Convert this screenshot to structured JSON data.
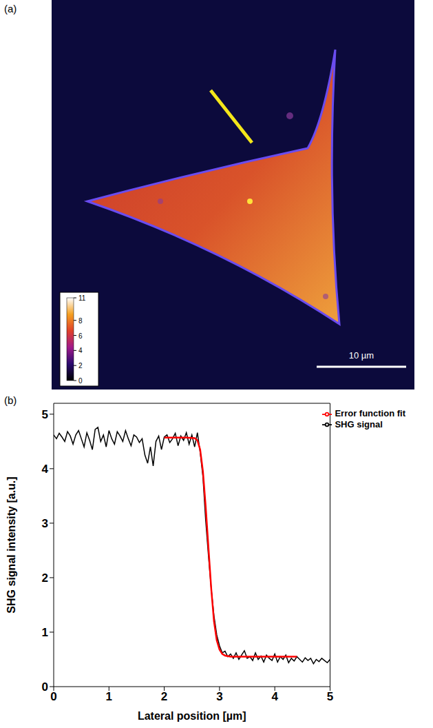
{
  "panel_labels": [
    "(a)",
    "(b)"
  ],
  "image": {
    "colorbar": {
      "range": [
        0,
        11
      ],
      "ticks": [
        0,
        2,
        4,
        6,
        8,
        11
      ]
    },
    "scale_bar": "10 µm"
  },
  "chart_data": {
    "type": "line",
    "x_label": "Lateral position [µm]",
    "y_label": "SHG signal intensity [a.u.]",
    "xlim": [
      0,
      5
    ],
    "ylim": [
      0,
      5.2
    ],
    "xticks": [
      0,
      1,
      2,
      3,
      4,
      5
    ],
    "yticks": [
      0,
      1,
      2,
      3,
      4,
      5
    ],
    "legend": "top-right",
    "series": [
      {
        "name": "SHG signal",
        "color": "#000000",
        "x": [
          0,
          0.05,
          0.1,
          0.15,
          0.2,
          0.25,
          0.3,
          0.35,
          0.4,
          0.45,
          0.5,
          0.55,
          0.6,
          0.65,
          0.7,
          0.75,
          0.8,
          0.85,
          0.9,
          0.95,
          1,
          1.05,
          1.1,
          1.15,
          1.2,
          1.25,
          1.3,
          1.35,
          1.4,
          1.45,
          1.5,
          1.55,
          1.6,
          1.65,
          1.7,
          1.75,
          1.8,
          1.85,
          1.9,
          1.95,
          2,
          2.05,
          2.1,
          2.15,
          2.2,
          2.25,
          2.3,
          2.35,
          2.4,
          2.45,
          2.5,
          2.55,
          2.6,
          2.65,
          2.7,
          2.75,
          2.8,
          2.85,
          2.9,
          2.95,
          3,
          3.05,
          3.1,
          3.15,
          3.2,
          3.25,
          3.3,
          3.35,
          3.4,
          3.45,
          3.5,
          3.55,
          3.6,
          3.65,
          3.7,
          3.75,
          3.8,
          3.85,
          3.9,
          3.95,
          4,
          4.05,
          4.1,
          4.15,
          4.2,
          4.25,
          4.3,
          4.35,
          4.4,
          4.45,
          4.5,
          4.55,
          4.6,
          4.65,
          4.7,
          4.75,
          4.8,
          4.85,
          4.9,
          4.95,
          5
        ],
        "values": [
          4.62,
          4.55,
          4.65,
          4.58,
          4.5,
          4.68,
          4.6,
          4.45,
          4.62,
          4.7,
          4.55,
          4.4,
          4.66,
          4.52,
          4.35,
          4.72,
          4.76,
          4.5,
          4.62,
          4.4,
          4.7,
          4.55,
          4.45,
          4.68,
          4.6,
          4.5,
          4.7,
          4.55,
          4.42,
          4.62,
          4.58,
          4.48,
          4.55,
          4.25,
          4.1,
          4.4,
          4.05,
          4.5,
          4.6,
          4.35,
          4.58,
          4.62,
          4.48,
          4.55,
          4.65,
          4.42,
          4.6,
          4.52,
          4.66,
          4.45,
          4.62,
          4.4,
          4.66,
          4.3,
          3.85,
          3.05,
          2.4,
          1.8,
          1.3,
          0.95,
          0.75,
          0.62,
          0.65,
          0.55,
          0.6,
          0.52,
          0.62,
          0.5,
          0.58,
          0.66,
          0.52,
          0.55,
          0.48,
          0.62,
          0.5,
          0.56,
          0.45,
          0.58,
          0.52,
          0.48,
          0.6,
          0.45,
          0.55,
          0.5,
          0.58,
          0.44,
          0.52,
          0.47,
          0.55,
          0.5,
          0.45,
          0.53,
          0.48,
          0.52,
          0.42,
          0.5,
          0.46,
          0.52,
          0.48,
          0.44,
          0.5
        ]
      },
      {
        "name": "Error function fit",
        "color": "#ff0000",
        "x": [
          2,
          2.2,
          2.4,
          2.55,
          2.6,
          2.65,
          2.7,
          2.75,
          2.8,
          2.85,
          2.9,
          2.95,
          3,
          3.05,
          3.1,
          3.2,
          3.5,
          4,
          4.4
        ],
        "values": [
          4.57,
          4.57,
          4.57,
          4.56,
          4.52,
          4.35,
          3.95,
          3.3,
          2.55,
          1.8,
          1.2,
          0.85,
          0.68,
          0.6,
          0.57,
          0.55,
          0.55,
          0.55,
          0.55
        ]
      }
    ]
  }
}
